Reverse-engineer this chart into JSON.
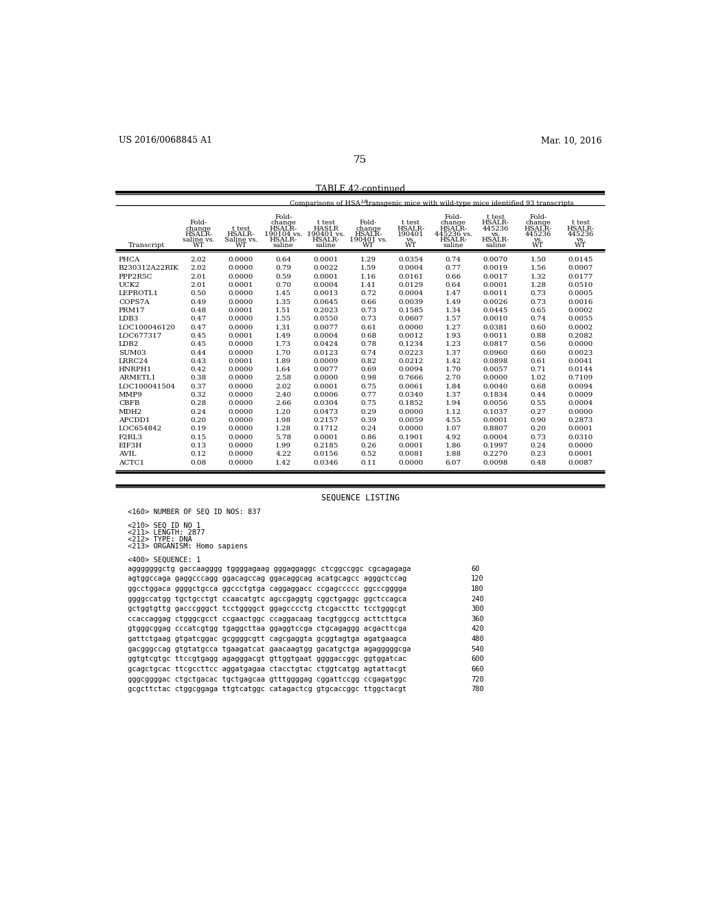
{
  "page_left": "US 2016/0068845 A1",
  "page_right": "Mar. 10, 2016",
  "page_number": "75",
  "table_title": "TABLE 42-continued",
  "table_subtitle_pre": "Comparisons of HSA",
  "table_subtitle_super": "LR",
  "table_subtitle_post": " transgenic mice with wild-type mice identified 93 transcripts",
  "header_cols": [
    [
      "Transcript"
    ],
    [
      "Fold-",
      "change",
      "HSALR-",
      "saline vs.",
      "WT"
    ],
    [
      "t test",
      "HSALR-",
      "Saline vs.",
      "WT"
    ],
    [
      "Fold-",
      "change",
      "HSALR-",
      "190104 vs.",
      "HSALR-",
      "saline"
    ],
    [
      "t test",
      "HASLR",
      "190401 vs.",
      "HSALR-",
      "saline"
    ],
    [
      "Fold-",
      "change",
      "HSALR-",
      "190401 vs.",
      "WT"
    ],
    [
      "t test",
      "HSALR-",
      "190401",
      "vs.",
      "WT"
    ],
    [
      "Fold-",
      "change",
      "HSALR-",
      "445236 vs.",
      "HSALR-",
      "saline"
    ],
    [
      "t test",
      "HSALR-",
      "445236",
      "vs.",
      "HSALR-",
      "saline"
    ],
    [
      "Fold-",
      "change",
      "HSALR-",
      "445236",
      "vs.",
      "WT"
    ],
    [
      "t test",
      "HSALR-",
      "445236",
      "vs.",
      "WT"
    ]
  ],
  "rows": [
    [
      "PHCA",
      "2.02",
      "0.0000",
      "0.64",
      "0.0001",
      "1.29",
      "0.0354",
      "0.74",
      "0.0070",
      "1.50",
      "0.0145"
    ],
    [
      "B230312A22RIK",
      "2.02",
      "0.0000",
      "0.79",
      "0.0022",
      "1.59",
      "0.0004",
      "0.77",
      "0.0019",
      "1.56",
      "0.0007"
    ],
    [
      "PPP2R5C",
      "2.01",
      "0.0000",
      "0.59",
      "0.0001",
      "1.16",
      "0.0161",
      "0.66",
      "0.0017",
      "1.32",
      "0.0177"
    ],
    [
      "UCK2",
      "2.01",
      "0.0001",
      "0.70",
      "0.0004",
      "1.41",
      "0.0129",
      "0.64",
      "0.0001",
      "1.28",
      "0.0510"
    ],
    [
      "LEPROTL1",
      "0.50",
      "0.0000",
      "1.45",
      "0.0013",
      "0.72",
      "0.0004",
      "1.47",
      "0.0011",
      "0.73",
      "0.0005"
    ],
    [
      "COPS7A",
      "0.49",
      "0.0000",
      "1.35",
      "0.0645",
      "0.66",
      "0.0039",
      "1.49",
      "0.0026",
      "0.73",
      "0.0016"
    ],
    [
      "PRM17",
      "0.48",
      "0.0001",
      "1.51",
      "0.2023",
      "0.73",
      "0.1585",
      "1.34",
      "0.0445",
      "0.65",
      "0.0002"
    ],
    [
      "LDB3",
      "0.47",
      "0.0000",
      "1.55",
      "0.0550",
      "0.73",
      "0.0607",
      "1.57",
      "0.0010",
      "0.74",
      "0.0055"
    ],
    [
      "LOC100046120",
      "0.47",
      "0.0000",
      "1.31",
      "0.0077",
      "0.61",
      "0.0000",
      "1.27",
      "0.0381",
      "0.60",
      "0.0002"
    ],
    [
      "LOC677317",
      "0.45",
      "0.0001",
      "1.49",
      "0.0004",
      "0.68",
      "0.0012",
      "1.93",
      "0.0011",
      "0.88",
      "0.2082"
    ],
    [
      "LDB2",
      "0.45",
      "0.0000",
      "1.73",
      "0.0424",
      "0.78",
      "0.1234",
      "1.23",
      "0.0817",
      "0.56",
      "0.0000"
    ],
    [
      "SUM03",
      "0.44",
      "0.0000",
      "1.70",
      "0.0123",
      "0.74",
      "0.0223",
      "1.37",
      "0.0960",
      "0.60",
      "0.0023"
    ],
    [
      "LRRC24",
      "0.43",
      "0.0001",
      "1.89",
      "0.0009",
      "0.82",
      "0.0212",
      "1.42",
      "0.0898",
      "0.61",
      "0.0041"
    ],
    [
      "HNRPH1",
      "0.42",
      "0.0000",
      "1.64",
      "0.0077",
      "0.69",
      "0.0094",
      "1.70",
      "0.0057",
      "0.71",
      "0.0144"
    ],
    [
      "ARMETL1",
      "0.38",
      "0.0000",
      "2.58",
      "0.0000",
      "0.98",
      "0.7666",
      "2.70",
      "0.0000",
      "1.02",
      "0.7109"
    ],
    [
      "LOC100041504",
      "0.37",
      "0.0000",
      "2.02",
      "0.0001",
      "0.75",
      "0.0061",
      "1.84",
      "0.0040",
      "0.68",
      "0.0094"
    ],
    [
      "MMP9",
      "0.32",
      "0.0000",
      "2.40",
      "0.0006",
      "0.77",
      "0.0340",
      "1.37",
      "0.1834",
      "0.44",
      "0.0009"
    ],
    [
      "CBFB",
      "0.28",
      "0.0000",
      "2.66",
      "0.0304",
      "0.75",
      "0.1852",
      "1.94",
      "0.0056",
      "0.55",
      "0.0004"
    ],
    [
      "MDH2",
      "0.24",
      "0.0000",
      "1.20",
      "0.0473",
      "0.29",
      "0.0000",
      "1.12",
      "0.1037",
      "0.27",
      "0.0000"
    ],
    [
      "APCDD1",
      "0.20",
      "0.0000",
      "1.98",
      "0.2157",
      "0.39",
      "0.0059",
      "4.55",
      "0.0001",
      "0.90",
      "0.2873"
    ],
    [
      "LOC654842",
      "0.19",
      "0.0000",
      "1.28",
      "0.1712",
      "0.24",
      "0.0000",
      "1.07",
      "0.8807",
      "0.20",
      "0.0001"
    ],
    [
      "F2RL3",
      "0.15",
      "0.0000",
      "5.78",
      "0.0001",
      "0.86",
      "0.1901",
      "4.92",
      "0.0004",
      "0.73",
      "0.0310"
    ],
    [
      "EIF3H",
      "0.13",
      "0.0000",
      "1.99",
      "0.2185",
      "0.26",
      "0.0001",
      "1.86",
      "0.1997",
      "0.24",
      "0.0000"
    ],
    [
      "AVIL",
      "0.12",
      "0.0000",
      "4.22",
      "0.0156",
      "0.52",
      "0.0081",
      "1.88",
      "0.2270",
      "0.23",
      "0.0001"
    ],
    [
      "ACTC1",
      "0.08",
      "0.0000",
      "1.42",
      "0.0346",
      "0.11",
      "0.0000",
      "6.07",
      "0.0098",
      "0.48",
      "0.0087"
    ]
  ],
  "seq_title": "SEQUENCE LISTING",
  "seq_metadata": [
    "<160> NUMBER OF SEQ ID NOS: 837",
    "",
    "<210> SEQ ID NO 1",
    "<211> LENGTH: 2877",
    "<212> TYPE: DNA",
    "<213> ORGANISM: Homo sapiens",
    "",
    "<400> SEQUENCE: 1"
  ],
  "seq_data": [
    [
      "agggggggctg gaccaagggg tggggagaag gggaggaggc ctcggccggc cgcagagaga",
      "60"
    ],
    [
      "agtggccaga gaggcccagg ggacagccag ggacaggcag acatgcagcc agggctccag",
      "120"
    ],
    [
      "ggcctggaca ggggctgcca ggccctgtga caggaggacc ccgagccccc ggcccgggga",
      "180"
    ],
    [
      "ggggccatgg tgctgcctgt ccaacatgtc agccgaggtg cggctgaggc ggctccagca",
      "240"
    ],
    [
      "gctggtgttg gacccgggct tcctggggct ggagcccctg ctcgaccttc tcctgggcgt",
      "300"
    ],
    [
      "ccaccaggag ctgggcgcct ccgaactggc ccaggacaag tacgtggccg acttcttgca",
      "360"
    ],
    [
      "gtgggcggag cccatcgtgg tgaggcttaa ggaggtccga ctgcagaggg acgacttcga",
      "420"
    ],
    [
      "gattctgaag gtgatcggac gcggggcgtt cagcgaggta gcggtagtga agatgaagca",
      "480"
    ],
    [
      "gacgggccag gtgtatgcca tgaagatcat gaacaagtgg gacatgctga agagggggcga",
      "540"
    ],
    [
      "ggtgtcgtgc ttccgtgagg agagggacgt gttggtgaat ggggaccggc ggtggatcac",
      "600"
    ],
    [
      "gcagctgcac ttcgccttcc aggatgagaa ctacctgtac ctggtcatgg agtattacgt",
      "660"
    ],
    [
      "gggcggggac ctgctgacac tgctgagcaa gtttggggag cggattccgg ccgagatggc",
      "720"
    ],
    [
      "gcgcttctac ctggcggaga ttgtcatggc catagactcg gtgcaccggc ttggctacgt",
      "780"
    ]
  ]
}
